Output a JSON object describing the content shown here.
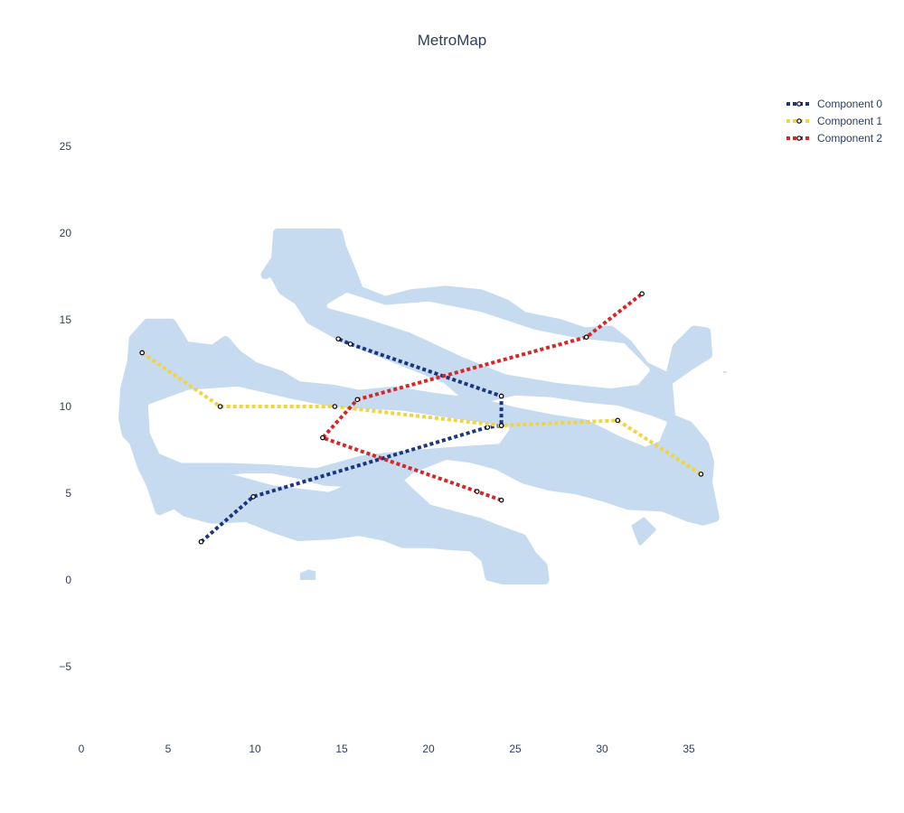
{
  "chart_data": {
    "type": "line",
    "title": "MetroMap",
    "xlabel": "",
    "ylabel": "",
    "xlim": [
      0,
      38
    ],
    "ylim": [
      -9,
      28
    ],
    "xticks": [
      "0",
      "5",
      "10",
      "15",
      "20",
      "25",
      "30",
      "35"
    ],
    "yticks": [
      "−5",
      "0",
      "5",
      "10",
      "15",
      "20",
      "25"
    ],
    "grid": false,
    "legend_position": "top-right",
    "background_region": {
      "color": "#c6dbef",
      "x_extent": [
        2.4,
        36.5
      ],
      "y_extent": [
        0,
        20
      ]
    },
    "series": [
      {
        "name": "Component 0",
        "color": "#1a3680",
        "x": [
          6.9,
          9.9,
          23.4,
          24.2,
          24.2,
          15.5,
          14.8
        ],
        "y": [
          2.2,
          4.8,
          8.8,
          8.9,
          10.6,
          13.6,
          13.9
        ]
      },
      {
        "name": "Component 1",
        "color": "#f2d43d",
        "x": [
          3.5,
          8.0,
          14.6,
          24.2,
          30.9,
          35.7
        ],
        "y": [
          13.1,
          10.0,
          10.0,
          8.9,
          9.2,
          6.1
        ]
      },
      {
        "name": "Component 2",
        "color": "#d62728",
        "x": [
          24.2,
          22.8,
          13.9,
          15.9,
          29.1,
          32.3
        ],
        "y": [
          4.6,
          5.1,
          8.2,
          10.4,
          14.0,
          16.5
        ]
      }
    ]
  }
}
